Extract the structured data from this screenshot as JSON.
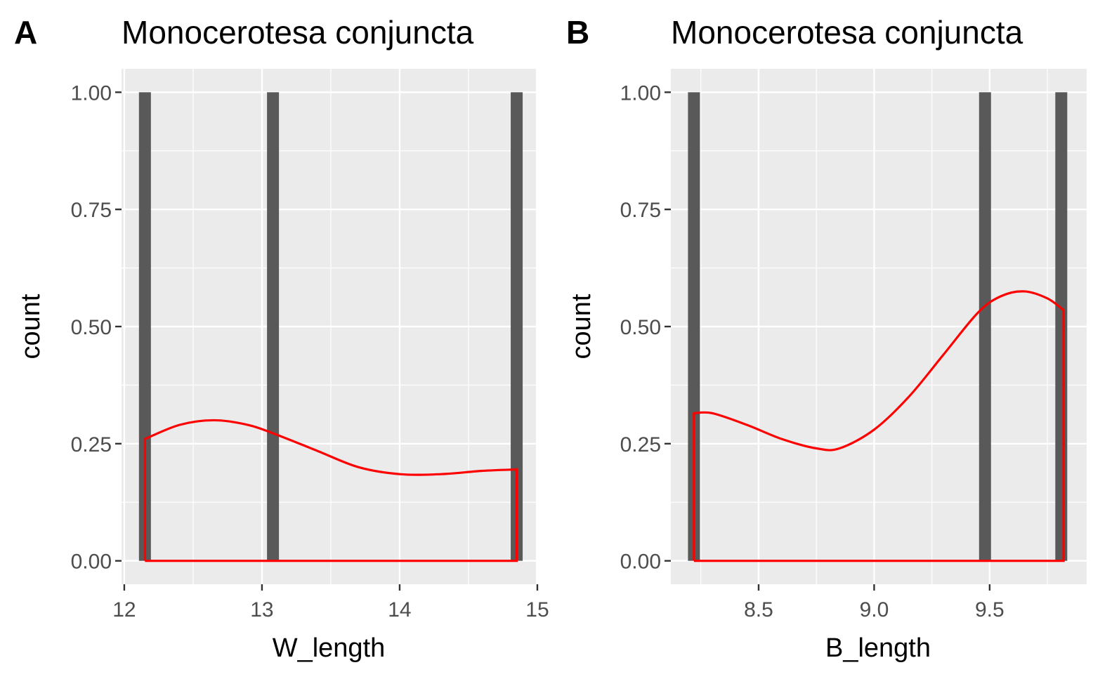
{
  "chart_data": [
    {
      "type": "bar",
      "panel_tag": "A",
      "title": "Monocerotesa conjuncta",
      "xlabel": "W_length",
      "ylabel": "count",
      "xlim": [
        11.98,
        14.99
      ],
      "ylim": [
        -0.05,
        1.05
      ],
      "xticks": [
        12,
        13,
        14,
        15
      ],
      "xtick_labels": [
        "12",
        "13",
        "14",
        "15"
      ],
      "yticks": [
        0,
        0.25,
        0.5,
        0.75,
        1.0
      ],
      "ytick_labels": [
        "0.00",
        "0.25",
        "0.50",
        "0.75",
        "1.00"
      ],
      "grid": true,
      "bars": [
        {
          "x": 12.15,
          "count": 1
        },
        {
          "x": 13.08,
          "count": 1
        },
        {
          "x": 14.85,
          "count": 1
        }
      ],
      "bar_color": "#595959",
      "density_color": "#ff0000",
      "density": [
        {
          "x": 12.15,
          "y": 0.0
        },
        {
          "x": 12.15,
          "y": 0.26
        },
        {
          "x": 12.4,
          "y": 0.29
        },
        {
          "x": 12.65,
          "y": 0.3
        },
        {
          "x": 12.9,
          "y": 0.29
        },
        {
          "x": 13.1,
          "y": 0.27
        },
        {
          "x": 13.4,
          "y": 0.235
        },
        {
          "x": 13.7,
          "y": 0.2
        },
        {
          "x": 14.0,
          "y": 0.185
        },
        {
          "x": 14.3,
          "y": 0.185
        },
        {
          "x": 14.6,
          "y": 0.192
        },
        {
          "x": 14.85,
          "y": 0.195
        },
        {
          "x": 14.85,
          "y": 0.0
        },
        {
          "x": 12.15,
          "y": 0.0
        }
      ]
    },
    {
      "type": "bar",
      "panel_tag": "B",
      "title": "Monocerotesa conjuncta",
      "xlabel": "B_length",
      "ylabel": "count",
      "xlim": [
        8.12,
        9.92
      ],
      "ylim": [
        -0.05,
        1.05
      ],
      "xticks": [
        8.5,
        9.0,
        9.5
      ],
      "xtick_labels": [
        "8.5",
        "9.0",
        "9.5"
      ],
      "yticks": [
        0,
        0.25,
        0.5,
        0.75,
        1.0
      ],
      "ytick_labels": [
        "0.00",
        "0.25",
        "0.50",
        "0.75",
        "1.00"
      ],
      "grid": true,
      "bars": [
        {
          "x": 8.22,
          "count": 1
        },
        {
          "x": 9.48,
          "count": 1
        },
        {
          "x": 9.81,
          "count": 1
        }
      ],
      "bar_color": "#595959",
      "density_color": "#ff0000",
      "density": [
        {
          "x": 8.22,
          "y": 0.0
        },
        {
          "x": 8.22,
          "y": 0.315
        },
        {
          "x": 8.3,
          "y": 0.315
        },
        {
          "x": 8.45,
          "y": 0.29
        },
        {
          "x": 8.6,
          "y": 0.26
        },
        {
          "x": 8.75,
          "y": 0.24
        },
        {
          "x": 8.85,
          "y": 0.24
        },
        {
          "x": 9.0,
          "y": 0.28
        },
        {
          "x": 9.15,
          "y": 0.35
        },
        {
          "x": 9.3,
          "y": 0.44
        },
        {
          "x": 9.45,
          "y": 0.53
        },
        {
          "x": 9.55,
          "y": 0.565
        },
        {
          "x": 9.65,
          "y": 0.575
        },
        {
          "x": 9.75,
          "y": 0.56
        },
        {
          "x": 9.82,
          "y": 0.535
        },
        {
          "x": 9.82,
          "y": 0.0
        },
        {
          "x": 8.22,
          "y": 0.0
        }
      ]
    }
  ]
}
